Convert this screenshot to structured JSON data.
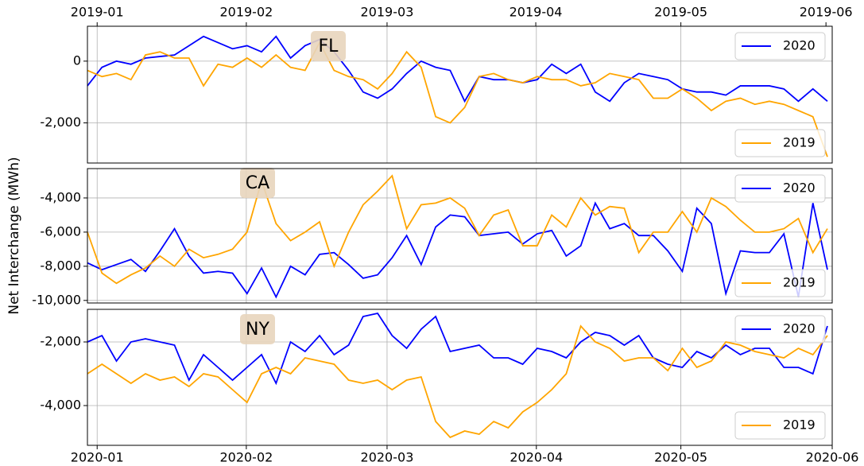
{
  "chart_data": [
    {
      "type": "line",
      "annotation": "FL",
      "xlim": [
        0,
        51.33
      ],
      "ylim": [
        -3300,
        1130
      ],
      "yticks": [
        {
          "value": 0,
          "label": "0"
        },
        {
          "value": -2000,
          "label": "-2,000"
        }
      ],
      "xticks_top": [
        {
          "value": 0.67,
          "label": "2019-01"
        },
        {
          "value": 10.95,
          "label": "2019-02"
        },
        {
          "value": 20.65,
          "label": "2019-03"
        },
        {
          "value": 30.9,
          "label": "2019-04"
        },
        {
          "value": 40.9,
          "label": "2019-05"
        },
        {
          "value": 50.9,
          "label": "2019-06"
        }
      ],
      "series": [
        {
          "name": "2020",
          "color": "#0000ff",
          "legend_loc": "upper right",
          "values": [
            -800,
            -200,
            0,
            -100,
            100,
            150,
            200,
            500,
            800,
            600,
            400,
            500,
            300,
            800,
            100,
            500,
            700,
            300,
            -300,
            -1000,
            -1200,
            -900,
            -400,
            0,
            -200,
            -300,
            -1300,
            -500,
            -600,
            -600,
            -700,
            -600,
            -100,
            -400,
            -100,
            -1000,
            -1300,
            -700,
            -400,
            -500,
            -600,
            -900,
            -1000,
            -1000,
            -1100,
            -800,
            -800,
            -800,
            -900,
            -1300,
            -900,
            -1300
          ]
        },
        {
          "name": "2019",
          "color": "#ffa500",
          "legend_loc": "lower right",
          "values": [
            -300,
            -500,
            -400,
            -600,
            200,
            300,
            100,
            100,
            -800,
            -100,
            -200,
            100,
            -200,
            200,
            -200,
            -300,
            600,
            -300,
            -500,
            -600,
            -900,
            -400,
            300,
            -200,
            -1800,
            -2000,
            -1500,
            -500,
            -400,
            -600,
            -700,
            -500,
            -600,
            -600,
            -800,
            -700,
            -400,
            -500,
            -600,
            -1200,
            -1200,
            -900,
            -1200,
            -1600,
            -1300,
            -1200,
            -1400,
            -1300,
            -1400,
            -1600,
            -1800,
            -3100
          ]
        }
      ]
    },
    {
      "type": "line",
      "annotation": "CA",
      "ylabel": "Net Interchange (MWh)",
      "xlim": [
        0,
        51.33
      ],
      "ylim": [
        -10150,
        -2280
      ],
      "yticks": [
        {
          "value": -4000,
          "label": "-4,000"
        },
        {
          "value": -6000,
          "label": "-6,000"
        },
        {
          "value": -8000,
          "label": "-8,000"
        },
        {
          "value": -10000,
          "label": "-10,000"
        }
      ],
      "series": [
        {
          "name": "2020",
          "color": "#0000ff",
          "legend_loc": "upper right",
          "values": [
            -7800,
            -8200,
            -7900,
            -7600,
            -8300,
            -7100,
            -5800,
            -7400,
            -8400,
            -8300,
            -8400,
            -9600,
            -8100,
            -9800,
            -8000,
            -8500,
            -7300,
            -7200,
            -7900,
            -8700,
            -8500,
            -7500,
            -6200,
            -7900,
            -5700,
            -5000,
            -5100,
            -6200,
            -6100,
            -6000,
            -6700,
            -6100,
            -5900,
            -7400,
            -6800,
            -4300,
            -5800,
            -5500,
            -6200,
            -6200,
            -7100,
            -8300,
            -4600,
            -5500,
            -9600,
            -7100,
            -7200,
            -7200,
            -6100,
            -9800,
            -4300,
            -8200
          ]
        },
        {
          "name": "2019",
          "color": "#ffa500",
          "legend_loc": "lower right",
          "values": [
            -6000,
            -8400,
            -9000,
            -8500,
            -8100,
            -7400,
            -8000,
            -7000,
            -7500,
            -7300,
            -7000,
            -6000,
            -3000,
            -5500,
            -6500,
            -6000,
            -5400,
            -8000,
            -6000,
            -4400,
            -3600,
            -2700,
            -5800,
            -4400,
            -4300,
            -4000,
            -4600,
            -6200,
            -5000,
            -4700,
            -6800,
            -6800,
            -5000,
            -5700,
            -4000,
            -5000,
            -4500,
            -4600,
            -7200,
            -6000,
            -6000,
            -4800,
            -6000,
            -4000,
            -4500,
            -5300,
            -6000,
            -6000,
            -5800,
            -5200,
            -7200,
            -5800
          ]
        }
      ]
    },
    {
      "type": "line",
      "annotation": "NY",
      "xlim": [
        0,
        51.33
      ],
      "ylim": [
        -5250,
        -975
      ],
      "yticks": [
        {
          "value": -2000,
          "label": "-2,000"
        },
        {
          "value": -4000,
          "label": "-4,000"
        }
      ],
      "xticks": [
        {
          "value": 0.67,
          "label": "2020-01"
        },
        {
          "value": 10.95,
          "label": "2020-02"
        },
        {
          "value": 20.65,
          "label": "2020-03"
        },
        {
          "value": 30.94,
          "label": "2020-04"
        },
        {
          "value": 40.9,
          "label": "2020-05"
        },
        {
          "value": 51.33,
          "label": "2020-06"
        }
      ],
      "series": [
        {
          "name": "2020",
          "color": "#0000ff",
          "legend_loc": "upper right",
          "values": [
            -2000,
            -1800,
            -2600,
            -2000,
            -1900,
            -2000,
            -2100,
            -3200,
            -2400,
            -2800,
            -3200,
            -2800,
            -2400,
            -3300,
            -2000,
            -2300,
            -1800,
            -2400,
            -2100,
            -1200,
            -1100,
            -1800,
            -2200,
            -1600,
            -1200,
            -2300,
            -2200,
            -2100,
            -2500,
            -2500,
            -2700,
            -2200,
            -2300,
            -2500,
            -2000,
            -1700,
            -1800,
            -2100,
            -1800,
            -2500,
            -2700,
            -2800,
            -2300,
            -2500,
            -2100,
            -2400,
            -2200,
            -2200,
            -2800,
            -2800,
            -3000,
            -1500
          ]
        },
        {
          "name": "2019",
          "color": "#ffa500",
          "legend_loc": "lower right",
          "values": [
            -3000,
            -2700,
            -3000,
            -3300,
            -3000,
            -3200,
            -3100,
            -3400,
            -3000,
            -3100,
            -3500,
            -3900,
            -3000,
            -2800,
            -3000,
            -2500,
            -2600,
            -2700,
            -3200,
            -3300,
            -3200,
            -3500,
            -3200,
            -3100,
            -4500,
            -5000,
            -4800,
            -4900,
            -4500,
            -4700,
            -4200,
            -3900,
            -3500,
            -3000,
            -1500,
            -2000,
            -2200,
            -2600,
            -2500,
            -2500,
            -2900,
            -2200,
            -2800,
            -2600,
            -2000,
            -2100,
            -2300,
            -2400,
            -2500,
            -2200,
            -2400,
            -1800
          ]
        }
      ]
    }
  ]
}
